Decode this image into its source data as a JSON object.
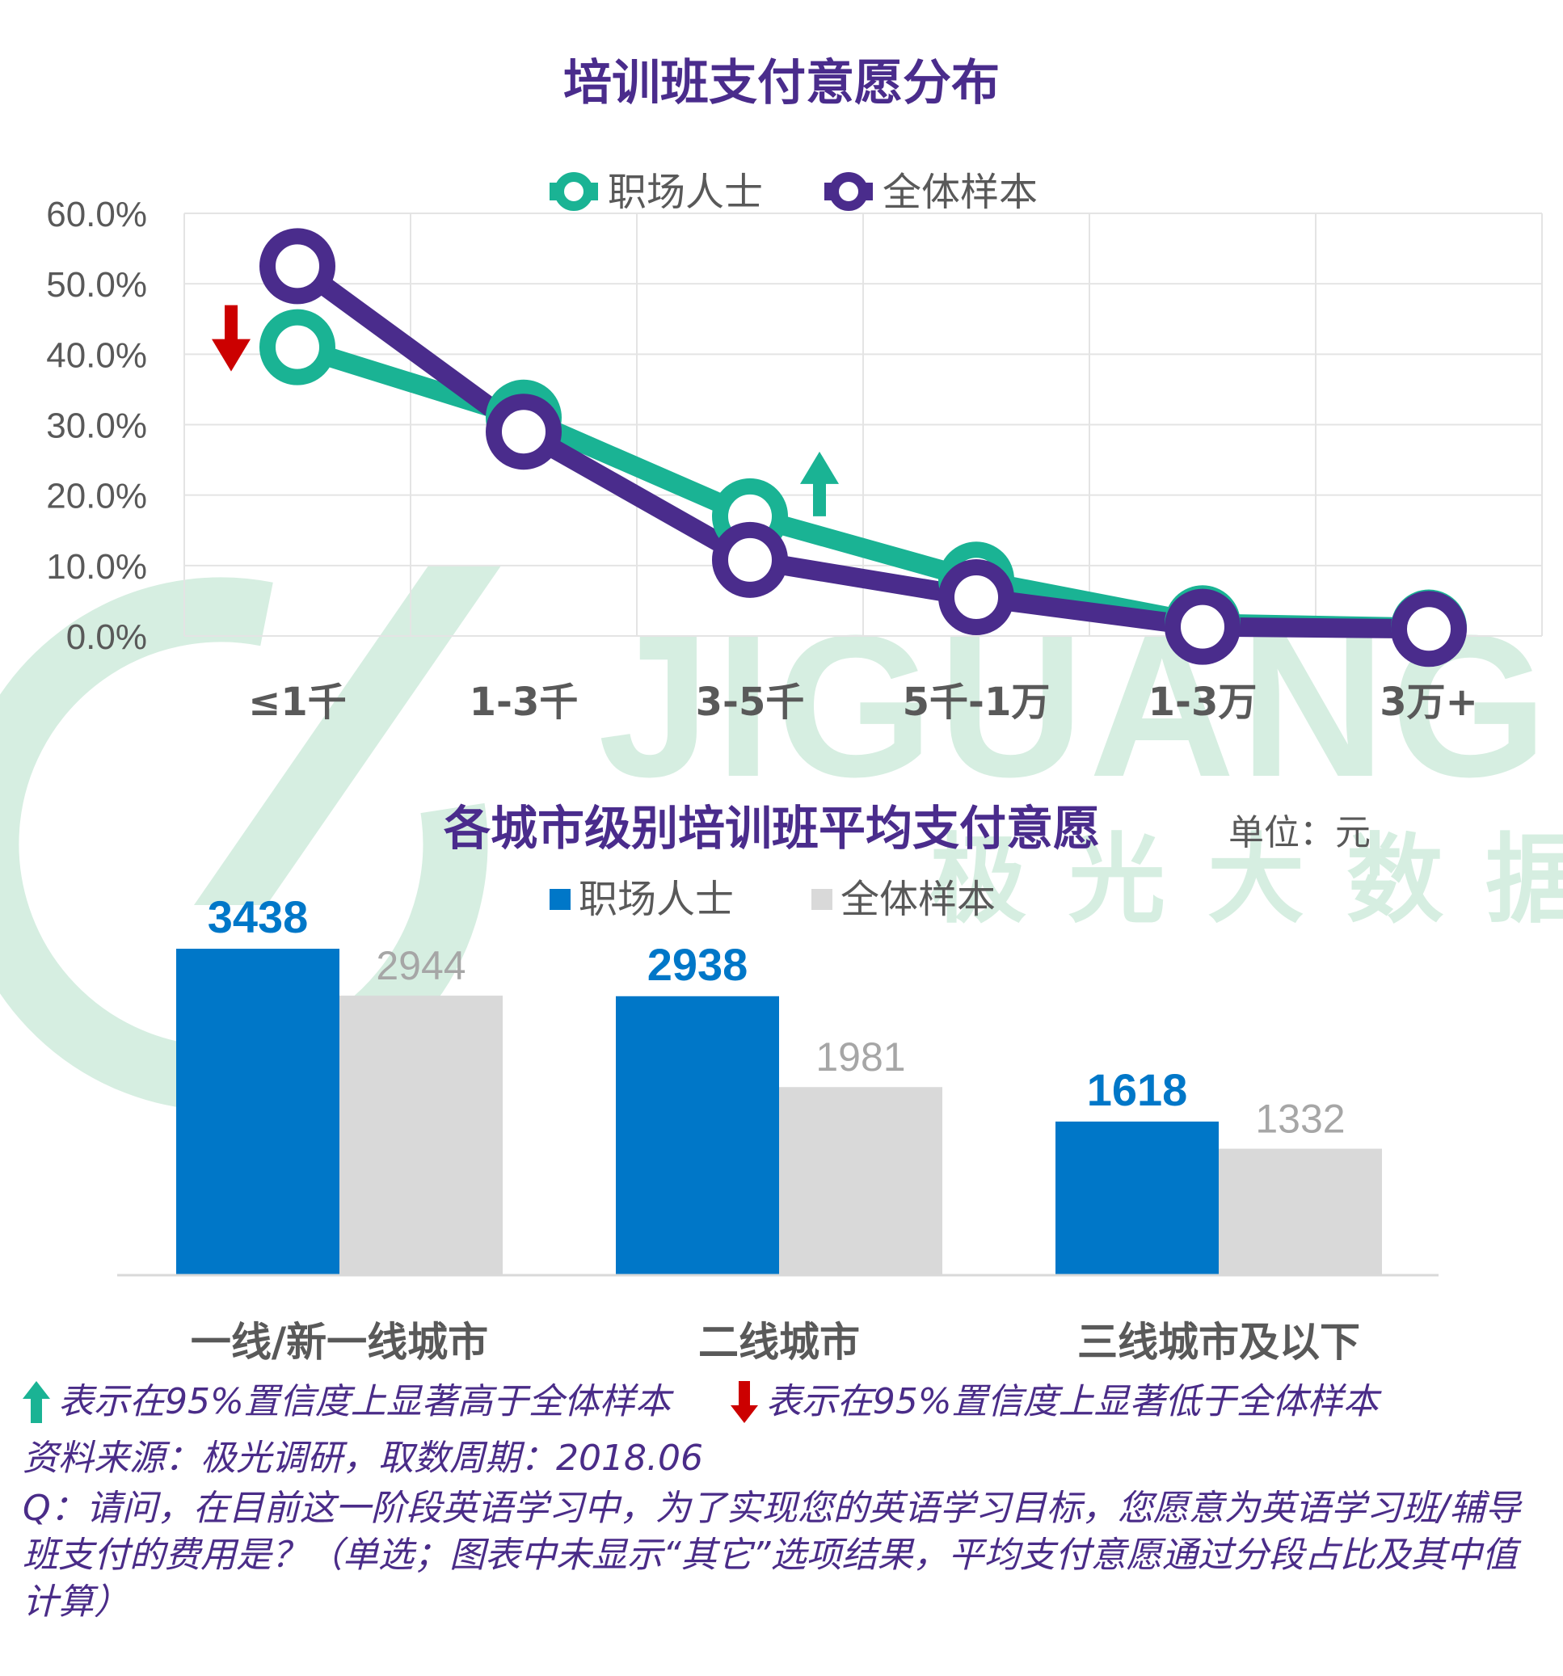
{
  "colors": {
    "title": "#4a2c8c",
    "professional_line": "#1ab394",
    "all_line": "#4a2c8c",
    "professional_bar": "#0077c8",
    "all_bar": "#d9d9d9",
    "professional_label": "#0077c8",
    "all_label": "#a6a6a6",
    "axis_text": "#595959",
    "up_arrow": "#1ab394",
    "down_arrow": "#cc0000",
    "watermark": "#d6eee1"
  },
  "watermark": {
    "text": "JIGUANG",
    "subtext": "极光大数据"
  },
  "chart_data": [
    {
      "type": "line",
      "title": "培训班支付意愿分布",
      "categories": [
        "≤1千",
        "1-3千",
        "3-5千",
        "5千-1万",
        "1-3万",
        "3万+"
      ],
      "series": [
        {
          "name": "职场人士",
          "values": [
            41.0,
            31.0,
            17.0,
            8.0,
            1.8,
            1.2
          ]
        },
        {
          "name": "全体样本",
          "values": [
            52.5,
            29.0,
            10.8,
            5.5,
            1.3,
            1.0
          ]
        }
      ],
      "y_ticks": [
        "60.0%",
        "50.0%",
        "40.0%",
        "30.0%",
        "20.0%",
        "10.0%",
        "0.0%"
      ],
      "ylim": [
        0,
        60
      ],
      "grid": true,
      "legend": "top-center",
      "annotations": [
        {
          "category": "≤1千",
          "type": "down-arrow"
        },
        {
          "category": "3-5千",
          "type": "up-arrow"
        }
      ]
    },
    {
      "type": "bar",
      "title": "各城市级别培训班平均支付意愿",
      "unit": "单位：元",
      "categories": [
        "一线/新一线城市",
        "二线城市",
        "三线城市及以下"
      ],
      "series": [
        {
          "name": "职场人士",
          "values": [
            3438,
            2938,
            1618
          ]
        },
        {
          "name": "全体样本",
          "values": [
            2944,
            1981,
            1332
          ]
        }
      ],
      "ylim": [
        0,
        3600
      ],
      "legend": "top-center"
    }
  ],
  "footer": {
    "note_up": "表示在95%置信度上显著高于全体样本",
    "note_down": "表示在95%置信度上显著低于全体样本",
    "source": "资料来源：极光调研，取数周期：2018.06",
    "question": "Q：请问，在目前这一阶段英语学习中，为了实现您的英语学习目标，您愿意为英语学习班/辅导班支付的费用是？（单选；图表中未显示“其它”选项结果，平均支付意愿通过分段占比及其中值计算）"
  }
}
